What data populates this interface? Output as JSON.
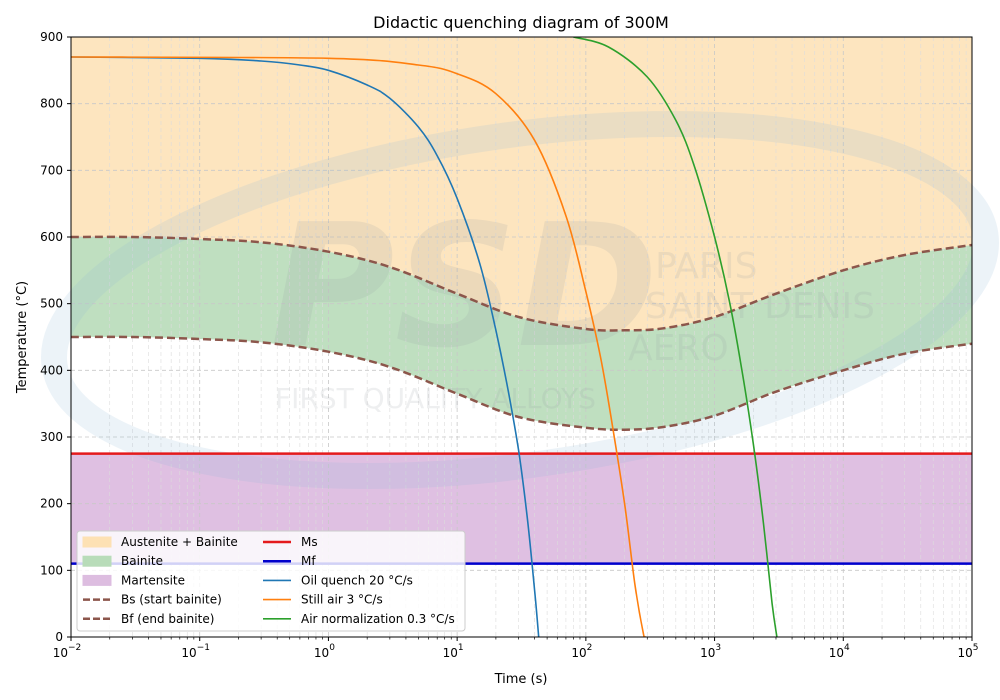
{
  "chart_data": {
    "type": "line",
    "title": "Didactic quenching diagram of 300M",
    "xlabel": "Time (s)",
    "ylabel": "Temperature (°C)",
    "xscale": "log",
    "xlim": [
      0.01,
      100000
    ],
    "ylim": [
      0,
      900
    ],
    "x_tick_bases": [
      "10",
      "10",
      "10",
      "10",
      "10",
      "10",
      "10",
      "10"
    ],
    "x_tick_exponents": [
      "−2",
      "−1",
      "0",
      "1",
      "2",
      "3",
      "4",
      "5"
    ],
    "x_tick_values": [
      0.01,
      0.1,
      1,
      10,
      100,
      1000,
      10000,
      100000
    ],
    "y_ticks": [
      "0",
      "100",
      "200",
      "300",
      "400",
      "500",
      "600",
      "700",
      "800",
      "900"
    ],
    "y_tick_values": [
      0,
      100,
      200,
      300,
      400,
      500,
      600,
      700,
      800,
      900
    ],
    "grid": true,
    "legend_position": "lower-left",
    "regions": [
      {
        "name": "Austenite + Bainite",
        "color": "#fde1b4",
        "between": [
          "bs_curve",
          "top"
        ]
      },
      {
        "name": "Bainite",
        "color": "#b8dcb9",
        "between": [
          "bf_curve",
          "bs_curve"
        ]
      },
      {
        "name": "Martensite",
        "color": "#ddbde0",
        "y_range": [
          110,
          275
        ]
      }
    ],
    "bs_curve": {
      "name": "Bs (start bainite)",
      "color": "#8c564b",
      "x": [
        0.01,
        0.03,
        0.1,
        0.3,
        1,
        3,
        10,
        30,
        100,
        200,
        400,
        1000,
        3000,
        10000,
        30000,
        100000
      ],
      "y": [
        600,
        600,
        597,
        592,
        578,
        555,
        515,
        480,
        462,
        460,
        463,
        480,
        515,
        550,
        573,
        588
      ]
    },
    "bf_curve": {
      "name": "Bf (end bainite)",
      "color": "#8c564b",
      "x": [
        0.01,
        0.03,
        0.1,
        0.3,
        1,
        3,
        10,
        30,
        100,
        200,
        400,
        1000,
        3000,
        10000,
        30000,
        100000
      ],
      "y": [
        450,
        450,
        447,
        442,
        428,
        405,
        365,
        330,
        314,
        311,
        315,
        332,
        368,
        400,
        425,
        440
      ]
    },
    "hlines": [
      {
        "name": "Ms",
        "y": 275,
        "color": "#e41a1c"
      },
      {
        "name": "Mf",
        "y": 110,
        "color": "#0000cc"
      }
    ],
    "series": [
      {
        "name": "Oil quench 20 °C/s",
        "color": "#1f77b4",
        "x": [
          0.01,
          0.1,
          0.3,
          0.6,
          1,
          2,
          3,
          5,
          7,
          10,
          15,
          20,
          25,
          30,
          35,
          40,
          43
        ],
        "y": [
          870,
          868,
          864,
          858,
          850,
          828,
          808,
          765,
          722,
          658,
          560,
          460,
          368,
          280,
          180,
          70,
          0
        ]
      },
      {
        "name": "Still air 3 °C/s",
        "color": "#ff7f0e",
        "x": [
          0.01,
          1,
          5,
          10,
          20,
          40,
          70,
          100,
          130,
          160,
          200,
          240,
          280,
          290
        ],
        "y": [
          870,
          868,
          858,
          845,
          815,
          745,
          632,
          518,
          420,
          320,
          200,
          80,
          5,
          0
        ]
      },
      {
        "name": "Air normalization 0.3 °C/s",
        "color": "#2ca02c",
        "x": [
          80,
          150,
          300,
          500,
          700,
          1000,
          1300,
          1600,
          2000,
          2400,
          2800,
          3050
        ],
        "y": [
          900,
          885,
          840,
          775,
          705,
          600,
          505,
          410,
          290,
          170,
          50,
          0
        ]
      }
    ],
    "legend": {
      "col1": [
        "Austenite + Bainite",
        "Bainite",
        "Martensite",
        "Bs (start bainite)",
        "Bf (end bainite)"
      ],
      "col2": [
        "Ms",
        "Mf",
        "Oil quench 20 °C/s",
        "Still air 3 °C/s",
        "Air normalization 0.3 °C/s"
      ]
    }
  },
  "watermark": {
    "logo": "PSD",
    "word1": "PARIS",
    "word2": "SAINT DENIS",
    "word3": "AERO",
    "tagline": "FIRST QUALITY ALLOYS"
  }
}
